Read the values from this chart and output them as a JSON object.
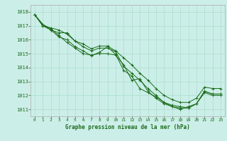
{
  "title": "Graphe pression niveau de la mer (hPa)",
  "bg_color": "#cceee8",
  "grid_color": "#aaddcc",
  "line_color": "#1a6b1a",
  "xlim": [
    -0.5,
    23.5
  ],
  "ylim": [
    1010.5,
    1018.5
  ],
  "yticks": [
    1011,
    1012,
    1013,
    1014,
    1015,
    1016,
    1017,
    1018
  ],
  "xticks": [
    0,
    1,
    2,
    3,
    4,
    5,
    6,
    7,
    8,
    9,
    10,
    11,
    12,
    13,
    14,
    15,
    16,
    17,
    18,
    19,
    20,
    21,
    22,
    23
  ],
  "series": [
    [
      1017.8,
      1017.1,
      1016.8,
      1016.3,
      1015.8,
      1015.4,
      1015.0,
      1014.9,
      1015.0,
      1015.0,
      1014.9,
      1014.2,
      1013.1,
      1013.2,
      1012.3,
      1011.8,
      1011.4,
      1011.2,
      1011.1,
      1011.1,
      1011.4,
      1012.2,
      1012.0,
      1012.0
    ],
    [
      1017.8,
      1017.1,
      1016.7,
      1016.2,
      1016.0,
      1015.5,
      1015.2,
      1014.85,
      1015.1,
      1015.5,
      1014.95,
      1013.8,
      1013.4,
      1012.5,
      1012.2,
      1011.9,
      1011.5,
      1011.2,
      1011.0,
      1011.2,
      1011.4,
      1012.3,
      1012.1,
      1012.1
    ],
    [
      1017.8,
      1017.0,
      1016.7,
      1016.5,
      1016.5,
      1015.9,
      1015.5,
      1015.2,
      1015.4,
      1015.4,
      1015.15,
      1014.1,
      1013.6,
      1013.1,
      1012.5,
      1012.0,
      1011.5,
      1011.3,
      1011.2,
      1011.1,
      1011.4,
      1012.3,
      1012.1,
      1012.1
    ],
    [
      1017.8,
      1017.0,
      1016.85,
      1016.7,
      1016.4,
      1015.9,
      1015.7,
      1015.35,
      1015.55,
      1015.55,
      1015.2,
      1014.7,
      1014.2,
      1013.6,
      1013.1,
      1012.5,
      1012.0,
      1011.7,
      1011.5,
      1011.5,
      1011.8,
      1012.6,
      1012.5,
      1012.5
    ]
  ]
}
